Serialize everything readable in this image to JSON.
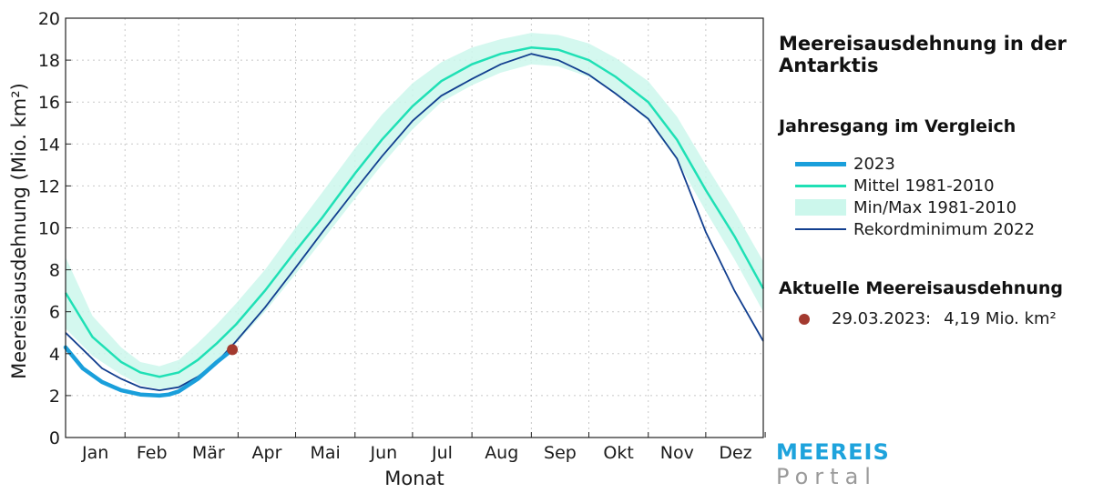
{
  "chart_data": {
    "type": "line",
    "title": "Meereisausdehnung in der Antarktis",
    "subtitle": "Jahresgang im Vergleich",
    "xlabel": "Monat",
    "ylabel": "Meereisausdehnung (Mio. km²)",
    "ylim": [
      0,
      20
    ],
    "yticks": [
      0,
      2,
      4,
      6,
      8,
      10,
      12,
      14,
      16,
      18,
      20
    ],
    "xlim": [
      1,
      365
    ],
    "month_labels": [
      "Jan",
      "Feb",
      "Mär",
      "Apr",
      "Mai",
      "Jun",
      "Jul",
      "Aug",
      "Sep",
      "Okt",
      "Nov",
      "Dez"
    ],
    "grid": true,
    "legend_position": "right",
    "series": [
      {
        "name": "2023",
        "color": "#1a9fdb",
        "x": [
          1,
          10,
          20,
          30,
          40,
          50,
          55,
          60,
          70,
          80,
          88
        ],
        "y": [
          4.3,
          3.3,
          2.65,
          2.25,
          2.05,
          2.0,
          2.05,
          2.2,
          2.8,
          3.6,
          4.19
        ]
      },
      {
        "name": "Mittel 1981-2010",
        "color": "#1fe0b5",
        "x": [
          1,
          15,
          30,
          40,
          50,
          60,
          70,
          80,
          90,
          105,
          121,
          135,
          152,
          166,
          182,
          197,
          213,
          228,
          244,
          258,
          274,
          288,
          305,
          320,
          335,
          350,
          365
        ],
        "y": [
          6.9,
          4.8,
          3.6,
          3.1,
          2.9,
          3.1,
          3.7,
          4.5,
          5.4,
          7.0,
          8.9,
          10.5,
          12.6,
          14.2,
          15.8,
          17.0,
          17.8,
          18.3,
          18.6,
          18.5,
          18.0,
          17.2,
          16.0,
          14.2,
          11.8,
          9.6,
          7.1
        ]
      },
      {
        "name": "Min/Max 1981-2010",
        "color": "#ccf7ec",
        "x": [
          1,
          15,
          30,
          40,
          50,
          60,
          70,
          80,
          90,
          105,
          121,
          135,
          152,
          166,
          182,
          197,
          213,
          228,
          244,
          258,
          274,
          288,
          305,
          320,
          335,
          350,
          365
        ],
        "y_min": [
          5.2,
          3.9,
          3.0,
          2.5,
          2.3,
          2.4,
          2.9,
          3.6,
          4.5,
          6.0,
          7.8,
          9.4,
          11.4,
          13.0,
          14.7,
          16.0,
          16.8,
          17.4,
          17.8,
          17.7,
          17.2,
          16.4,
          15.1,
          13.2,
          10.8,
          8.5,
          6.0
        ],
        "y_max": [
          8.6,
          5.8,
          4.3,
          3.6,
          3.4,
          3.7,
          4.5,
          5.4,
          6.4,
          8.0,
          10.0,
          11.7,
          13.8,
          15.4,
          16.9,
          17.9,
          18.6,
          19.0,
          19.3,
          19.2,
          18.8,
          18.1,
          17.0,
          15.3,
          13.0,
          10.8,
          8.4
        ]
      },
      {
        "name": "Rekordminimum 2022",
        "color": "#123f8f",
        "x": [
          1,
          10,
          20,
          30,
          40,
          50,
          60,
          70,
          80,
          90,
          105,
          121,
          135,
          152,
          166,
          182,
          197,
          213,
          228,
          244,
          258,
          274,
          288,
          305,
          320,
          335,
          350,
          365
        ],
        "y": [
          5.0,
          4.2,
          3.3,
          2.8,
          2.4,
          2.25,
          2.4,
          2.9,
          3.6,
          4.6,
          6.2,
          8.1,
          9.8,
          11.8,
          13.4,
          15.1,
          16.3,
          17.1,
          17.8,
          18.3,
          18.0,
          17.3,
          16.4,
          15.2,
          13.3,
          9.8,
          7.0,
          4.6
        ]
      }
    ],
    "current": {
      "date": "29.03.2023:",
      "value": "4,19 Mio. km²",
      "x": 88,
      "y": 4.19,
      "color": "#a33a2f"
    }
  },
  "legend": {
    "items": [
      "2023",
      "Mittel 1981-2010",
      "Min/Max 1981-2010",
      "Rekordminimum 2022"
    ],
    "current_heading": "Aktuelle Meereisausdehnung"
  },
  "logo": {
    "top": "MEEREIS",
    "bottom": "Portal"
  }
}
